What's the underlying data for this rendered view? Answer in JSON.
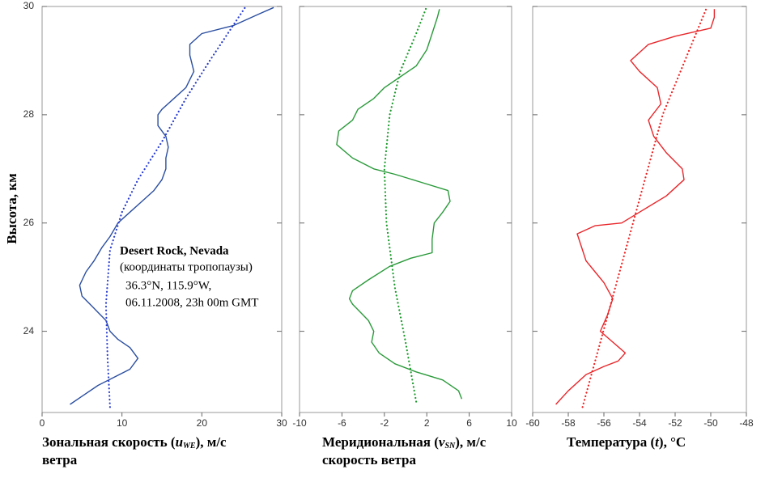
{
  "chart_data": [
    {
      "type": "line",
      "ylabel": "Высота, км",
      "xlabel": {
        "pre": "Зональная скорость (",
        "var": "u",
        "sub": "WE",
        "post": "), м/с",
        "line2": "ветра"
      },
      "xlim": [
        0,
        30
      ],
      "xticks": [
        0,
        10,
        20,
        30
      ],
      "ylim": [
        22.5,
        30
      ],
      "yticks": [
        24,
        26,
        28,
        30
      ],
      "annotation": [
        "Desert Rock, Nevada",
        "(координаты тропопаузы)",
        "36.3°N, 115.9°W,",
        "06.11.2008, 23h 00m GMT"
      ],
      "series": [
        {
          "color": "#2a4ea0",
          "style": "solid",
          "x": [
            3.5,
            5,
            7,
            9,
            11,
            12,
            11,
            9.5,
            8.5,
            8,
            7,
            6,
            5,
            4.7,
            5.5,
            6.5,
            7.5,
            8.5,
            9.5,
            11,
            12.5,
            14,
            15,
            15.5,
            15.5,
            15.8,
            15.5,
            14.5,
            14.5,
            15,
            16.5,
            18,
            19,
            18.5,
            18.5,
            20,
            24,
            27,
            29
          ],
          "y": [
            22.65,
            22.8,
            23.0,
            23.15,
            23.3,
            23.5,
            23.7,
            23.85,
            24.0,
            24.2,
            24.35,
            24.5,
            24.65,
            24.85,
            25.1,
            25.3,
            25.55,
            25.75,
            26.0,
            26.2,
            26.4,
            26.6,
            26.8,
            27.0,
            27.2,
            27.4,
            27.6,
            27.8,
            28.0,
            28.1,
            28.3,
            28.5,
            28.8,
            29.1,
            29.3,
            29.5,
            29.65,
            29.85,
            29.98
          ]
        },
        {
          "color": "#2a3ed0",
          "style": "dotted",
          "x": [
            8.5,
            8.2,
            8,
            8.5,
            10,
            12,
            15,
            18,
            21,
            25.5
          ],
          "y": [
            22.6,
            23.5,
            24.5,
            25.5,
            26.2,
            26.8,
            27.5,
            28.3,
            29.0,
            30
          ]
        }
      ]
    },
    {
      "type": "line",
      "xlabel": {
        "pre": "Меридиональная (",
        "var": "v",
        "sub": "SN",
        "post": "), м/с",
        "line2": "скорость ветра"
      },
      "xlim": [
        -10,
        10
      ],
      "xticks": [
        -10,
        -6,
        -2,
        2,
        6,
        10
      ],
      "ylim": [
        22.5,
        30
      ],
      "series": [
        {
          "color": "#2a9a3a",
          "style": "solid",
          "x": [
            5.3,
            5,
            3.5,
            1,
            -1,
            -2.5,
            -3.2,
            -3,
            -3.5,
            -5,
            -5.3,
            -5,
            -3.5,
            -1.5,
            0.5,
            2.5,
            2.5,
            2.7,
            3.5,
            4.2,
            4,
            1.5,
            -1,
            -3,
            -5,
            -6.5,
            -6.3,
            -5,
            -4.5,
            -3,
            -2,
            -0.5,
            1,
            2,
            2.5,
            3,
            3.2
          ],
          "y": [
            22.75,
            22.9,
            23.1,
            23.25,
            23.4,
            23.6,
            23.8,
            24.0,
            24.2,
            24.5,
            24.6,
            24.75,
            24.95,
            25.2,
            25.35,
            25.45,
            25.7,
            26.0,
            26.2,
            26.4,
            26.6,
            26.75,
            26.9,
            27.0,
            27.2,
            27.45,
            27.7,
            27.9,
            28.1,
            28.3,
            28.5,
            28.7,
            28.9,
            29.2,
            29.5,
            29.8,
            29.95
          ]
        },
        {
          "color": "#1a9a2a",
          "style": "dotted",
          "x": [
            1,
            0,
            -1,
            -1.8,
            -2,
            -1.5,
            -0.5,
            1,
            2
          ],
          "y": [
            22.7,
            23.8,
            24.8,
            26,
            27,
            28,
            28.8,
            29.5,
            30
          ]
        }
      ]
    },
    {
      "type": "line",
      "xlabel": {
        "pre": "Температура (",
        "var": "t",
        "post": "), °C"
      },
      "xlim": [
        -60,
        -48
      ],
      "xticks": [
        -60,
        -58,
        -56,
        -54,
        -52,
        -50,
        -48
      ],
      "ylim": [
        22.5,
        30
      ],
      "series": [
        {
          "color": "#e8262a",
          "style": "solid",
          "x": [
            -58.7,
            -58,
            -57,
            -56,
            -55.2,
            -54.8,
            -55.5,
            -56.2,
            -55.8,
            -55.5,
            -56,
            -56.5,
            -57,
            -57.3,
            -57.5,
            -56.5,
            -55,
            -54,
            -52.5,
            -51.5,
            -51.6,
            -52.5,
            -53.2,
            -53.5,
            -52.8,
            -53,
            -54,
            -54.5,
            -53.5,
            -52,
            -50,
            -49.8,
            -49.8
          ],
          "y": [
            22.65,
            22.9,
            23.2,
            23.35,
            23.45,
            23.6,
            23.8,
            24.0,
            24.3,
            24.6,
            24.9,
            25.1,
            25.3,
            25.6,
            25.8,
            25.95,
            26.0,
            26.2,
            26.5,
            26.8,
            27.0,
            27.3,
            27.6,
            27.9,
            28.2,
            28.5,
            28.8,
            29.0,
            29.3,
            29.45,
            29.6,
            29.8,
            29.95
          ]
        },
        {
          "color": "#f02020",
          "style": "dotted",
          "x": [
            -57.2,
            -52.7,
            -50.2
          ],
          "y": [
            22.6,
            28,
            30
          ]
        }
      ]
    }
  ]
}
